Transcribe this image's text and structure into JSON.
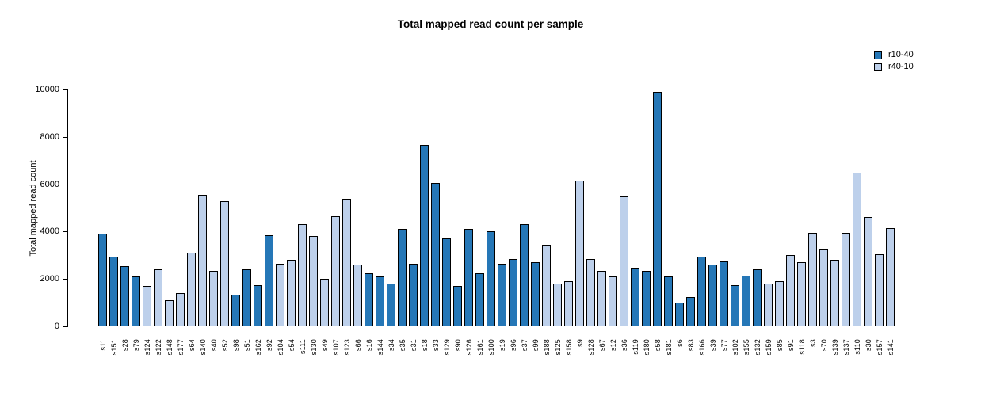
{
  "title": "Total mapped read count per sample",
  "y_axis": {
    "label": "Total mapped read count"
  },
  "legend": {
    "items": [
      {
        "label": "r10-40",
        "color": "#2577B7"
      },
      {
        "label": "r40-10",
        "color": "#BDD0EB"
      }
    ]
  },
  "chart_data": {
    "type": "bar",
    "title": "Total mapped read count per sample",
    "xlabel": "",
    "ylabel": "Total mapped read count",
    "ylim": [
      0,
      10000
    ],
    "yticks": [
      0,
      2000,
      4000,
      6000,
      8000,
      10000
    ],
    "grid": false,
    "legend_position": "topright",
    "series": [
      {
        "name": "r10-40",
        "color": "#2577B7"
      },
      {
        "name": "r40-10",
        "color": "#BDD0EB"
      }
    ],
    "categories": [
      "s11",
      "s151",
      "s28",
      "s79",
      "s124",
      "s122",
      "s148",
      "s177",
      "s64",
      "s140",
      "s40",
      "s52",
      "s98",
      "s51",
      "s162",
      "s92",
      "s104",
      "s54",
      "s111",
      "s130",
      "s49",
      "s107",
      "s123",
      "s66",
      "s16",
      "s144",
      "s34",
      "s35",
      "s31",
      "s18",
      "s33",
      "s129",
      "s90",
      "s126",
      "s161",
      "s100",
      "s19",
      "s96",
      "s37",
      "s99",
      "s188",
      "s125",
      "s158",
      "s9",
      "s128",
      "s67",
      "s12",
      "s36",
      "s119",
      "s180",
      "s58",
      "s181",
      "s6",
      "s83",
      "s166",
      "s39",
      "s77",
      "s102",
      "s155",
      "s132",
      "s159",
      "s85",
      "s91",
      "s118",
      "s3",
      "s70",
      "s139",
      "s137",
      "s110",
      "s30",
      "s157",
      "s141"
    ],
    "values": [
      3900,
      2950,
      2550,
      2100,
      1700,
      2400,
      1100,
      1400,
      3100,
      5550,
      2350,
      5300,
      1350,
      2400,
      1750,
      3850,
      2650,
      2800,
      4300,
      3800,
      2000,
      4650,
      5400,
      2600,
      2250,
      2100,
      1800,
      4100,
      2650,
      7650,
      6050,
      3700,
      1700,
      4100,
      2250,
      4000,
      2650,
      2850,
      4300,
      2700,
      3450,
      1800,
      1900,
      6150,
      2850,
      2350,
      2100,
      5500,
      2450,
      2350,
      9900,
      2100,
      1000,
      1250,
      2950,
      2600,
      2750,
      1750,
      2150,
      2400,
      1800,
      1900,
      3000,
      2700,
      3950,
      3250,
      2800,
      3950,
      6500,
      4600,
      3050,
      4150
    ],
    "groups": [
      "r10-40",
      "r10-40",
      "r10-40",
      "r10-40",
      "r40-10",
      "r40-10",
      "r40-10",
      "r40-10",
      "r40-10",
      "r40-10",
      "r40-10",
      "r40-10",
      "r10-40",
      "r10-40",
      "r10-40",
      "r10-40",
      "r40-10",
      "r40-10",
      "r40-10",
      "r40-10",
      "r40-10",
      "r40-10",
      "r40-10",
      "r40-10",
      "r10-40",
      "r10-40",
      "r10-40",
      "r10-40",
      "r10-40",
      "r10-40",
      "r10-40",
      "r10-40",
      "r10-40",
      "r10-40",
      "r10-40",
      "r10-40",
      "r10-40",
      "r10-40",
      "r10-40",
      "r10-40",
      "r40-10",
      "r40-10",
      "r40-10",
      "r40-10",
      "r40-10",
      "r40-10",
      "r40-10",
      "r40-10",
      "r10-40",
      "r10-40",
      "r10-40",
      "r10-40",
      "r10-40",
      "r10-40",
      "r10-40",
      "r10-40",
      "r10-40",
      "r10-40",
      "r10-40",
      "r10-40",
      "r40-10",
      "r40-10",
      "r40-10",
      "r40-10",
      "r40-10",
      "r40-10",
      "r40-10",
      "r40-10",
      "r40-10",
      "r40-10",
      "r40-10",
      "r40-10"
    ]
  }
}
